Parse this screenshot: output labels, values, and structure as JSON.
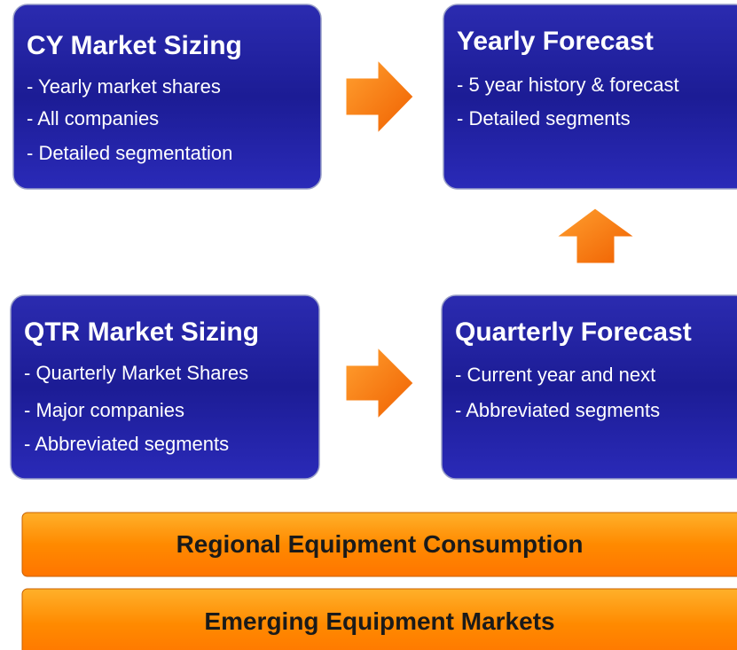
{
  "boxes": [
    {
      "title": "CY Market Sizing",
      "items": [
        "- Yearly market shares",
        "- All companies",
        "- Detailed segmentation"
      ]
    },
    {
      "title": "Yearly Forecast",
      "items": [
        "- 5 year history & forecast",
        "- Detailed segments"
      ]
    },
    {
      "title": "QTR Market Sizing",
      "items": [
        "- Quarterly Market Shares",
        "- Major companies",
        "- Abbreviated segments"
      ]
    },
    {
      "title": "Quarterly Forecast",
      "items": [
        "- Current year and next",
        "- Abbreviated segments"
      ]
    }
  ],
  "bars": [
    "Regional Equipment Consumption",
    "Emerging Equipment Markets"
  ]
}
